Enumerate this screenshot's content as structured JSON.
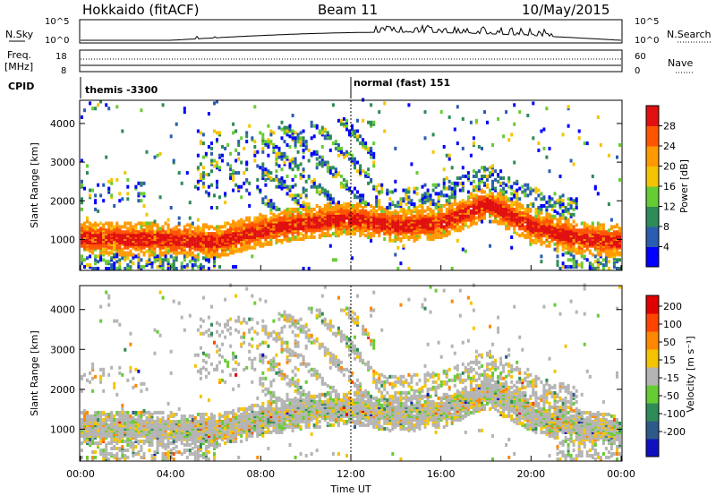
{
  "header": {
    "station": "Hokkaido (fitACF)",
    "beam": "Beam 11",
    "date": "10/May/2015"
  },
  "noise_panel": {
    "left_label": "N.Sky",
    "right_label": "N.Search",
    "left_ticks": [
      "10^5",
      "10^0"
    ],
    "right_ticks": [
      "10^5",
      "10^0"
    ]
  },
  "freq_panel": {
    "left_label_1": "Freq.",
    "left_label_2": "[MHz]",
    "left_ticks": [
      "18",
      "8"
    ],
    "right_label": "Nave",
    "right_ticks": [
      "60",
      "0"
    ]
  },
  "cpid": {
    "label": "CPID",
    "programs": [
      "themis -3300",
      "normal (fast) 151"
    ]
  },
  "power_panel": {
    "ylabel": "Slant Range [km]",
    "yticks": [
      "4000",
      "3000",
      "2000",
      "1000"
    ],
    "colorbar_title": "Power [dB]",
    "colorbar_ticks": [
      "28",
      "24",
      "20",
      "16",
      "12",
      "8",
      "4"
    ],
    "colors": [
      "#0000ff",
      "#2a5db0",
      "#2e8b57",
      "#66cc33",
      "#f5c400",
      "#ff9900",
      "#ff5500",
      "#e01010"
    ]
  },
  "velocity_panel": {
    "ylabel": "Slant Range [km]",
    "yticks": [
      "4000",
      "3000",
      "2000",
      "1000"
    ],
    "colorbar_title": "Velocity [m s⁻¹]",
    "colorbar_ticks": [
      "200",
      "100",
      "50",
      "15",
      "-15",
      "-50",
      "-100",
      "-200"
    ],
    "colors": [
      "#1010c0",
      "#2e5a8a",
      "#2e8b57",
      "#66cc33",
      "#b4b4b4",
      "#f5c400",
      "#ff8800",
      "#ff4400",
      "#e00000"
    ]
  },
  "x_axis": {
    "ticks": [
      "00:00",
      "04:00",
      "08:00",
      "12:00",
      "16:00",
      "20:00",
      "00:00"
    ],
    "label": "Time UT"
  },
  "chart_data": {
    "type": "heatmap",
    "title": "Hokkaido (fitACF) Beam 11 10/May/2015",
    "xlabel": "Time UT",
    "ylabel": "Slant Range [km]",
    "xlim": [
      0,
      24
    ],
    "ylim": [
      200,
      4600
    ],
    "panels": [
      {
        "name": "Power [dB]",
        "clim": [
          0,
          30
        ],
        "main_echo_band": [
          {
            "x": 0,
            "range_km": 1000
          },
          {
            "x": 4,
            "range_km": 950
          },
          {
            "x": 6,
            "range_km": 900
          },
          {
            "x": 8,
            "range_km": 1200
          },
          {
            "x": 10,
            "range_km": 1400
          },
          {
            "x": 12,
            "range_km": 1500
          },
          {
            "x": 14,
            "range_km": 1300
          },
          {
            "x": 16,
            "range_km": 1400
          },
          {
            "x": 18,
            "range_km": 1900
          },
          {
            "x": 20,
            "range_km": 1300
          },
          {
            "x": 22,
            "range_km": 1000
          },
          {
            "x": 24,
            "range_km": 900
          }
        ]
      },
      {
        "name": "Velocity [m s-1]",
        "clim": [
          -200,
          200
        ],
        "dominant_value": "-15 to 15"
      }
    ],
    "cpid_changes": [
      {
        "time": "00:00",
        "program": "themis -3300"
      },
      {
        "time": "12:00",
        "program": "normal (fast) 151"
      }
    ]
  }
}
